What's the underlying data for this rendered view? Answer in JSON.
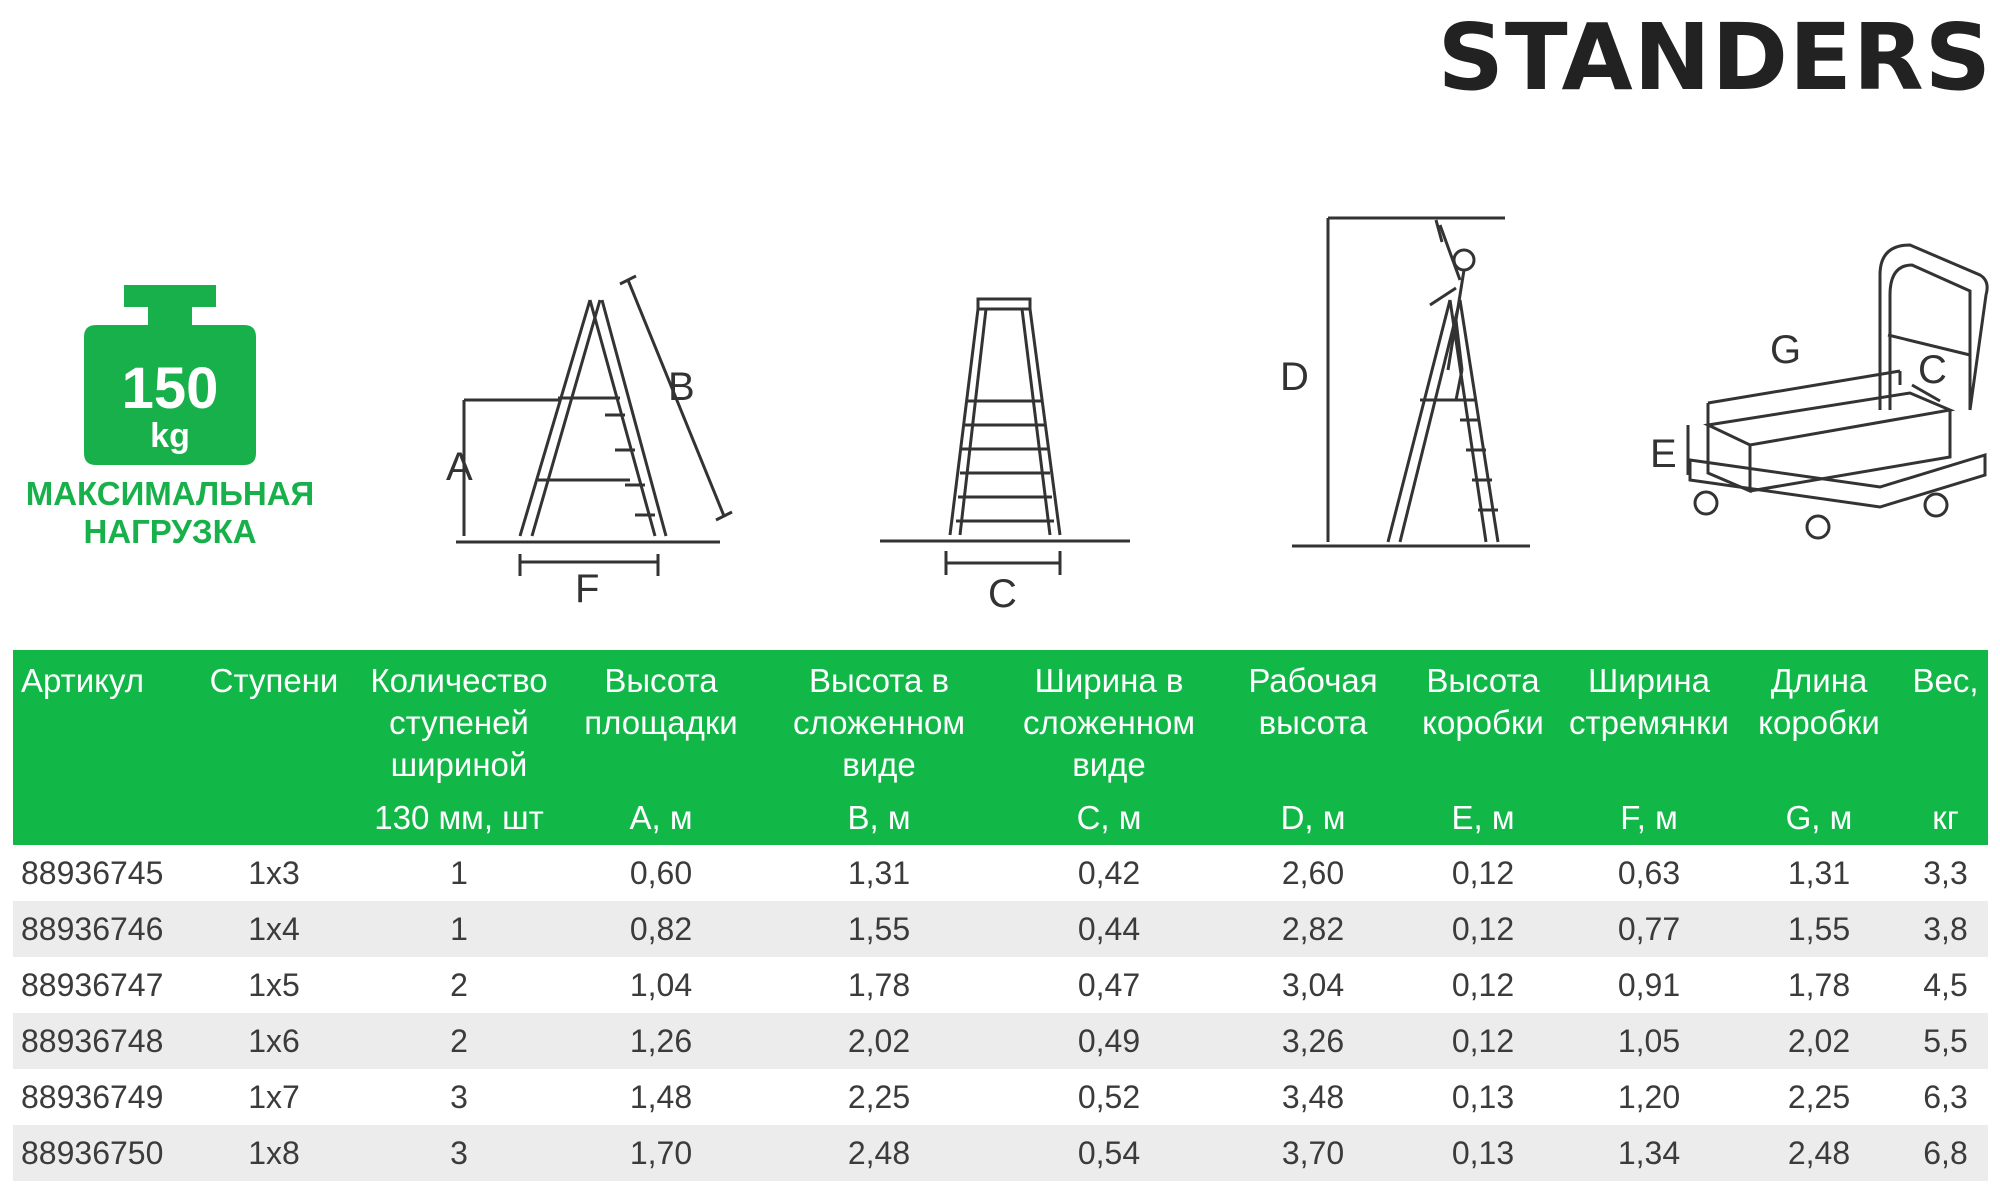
{
  "brand": "STANDERS",
  "load": {
    "value": "150",
    "unit": "kg",
    "caption_line1": "МАКСИМАЛЬНАЯ",
    "caption_line2": "НАГРУЗКА"
  },
  "diagram_labels": {
    "a": "A",
    "b": "B",
    "c": "C",
    "d": "D",
    "e": "E",
    "f": "F",
    "g": "G"
  },
  "colors": {
    "accent": "#11b848",
    "text": "#3b3b3b",
    "row_alt": "#ececec"
  },
  "table": {
    "headers": [
      {
        "name": "Артикул",
        "unit": ""
      },
      {
        "name": "Ступени",
        "unit": ""
      },
      {
        "name": "Количество ступеней шириной",
        "unit": "130 мм, шт"
      },
      {
        "name": "Высота площадки",
        "unit": "A, м"
      },
      {
        "name": "Высота в сложенном виде",
        "unit": "B, м"
      },
      {
        "name": "Ширина в сложенном виде",
        "unit": "C, м"
      },
      {
        "name": "Рабочая высота",
        "unit": "D, м"
      },
      {
        "name": "Высота коробки",
        "unit": "E, м"
      },
      {
        "name": "Ширина стремянки",
        "unit": "F, м"
      },
      {
        "name": "Длина коробки",
        "unit": "G, м"
      },
      {
        "name": "Вес,",
        "unit": "кг"
      }
    ],
    "rows": [
      [
        "88936745",
        "1x3",
        "1",
        "0,60",
        "1,31",
        "0,42",
        "2,60",
        "0,12",
        "0,63",
        "1,31",
        "3,3"
      ],
      [
        "88936746",
        "1x4",
        "1",
        "0,82",
        "1,55",
        "0,44",
        "2,82",
        "0,12",
        "0,77",
        "1,55",
        "3,8"
      ],
      [
        "88936747",
        "1x5",
        "2",
        "1,04",
        "1,78",
        "0,47",
        "3,04",
        "0,12",
        "0,91",
        "1,78",
        "4,5"
      ],
      [
        "88936748",
        "1x6",
        "2",
        "1,26",
        "2,02",
        "0,49",
        "3,26",
        "0,12",
        "1,05",
        "2,02",
        "5,5"
      ],
      [
        "88936749",
        "1x7",
        "3",
        "1,48",
        "2,25",
        "0,52",
        "3,48",
        "0,13",
        "1,20",
        "2,25",
        "6,3"
      ],
      [
        "88936750",
        "1x8",
        "3",
        "1,70",
        "2,48",
        "0,54",
        "3,70",
        "0,13",
        "1,34",
        "2,48",
        "6,8"
      ]
    ]
  }
}
